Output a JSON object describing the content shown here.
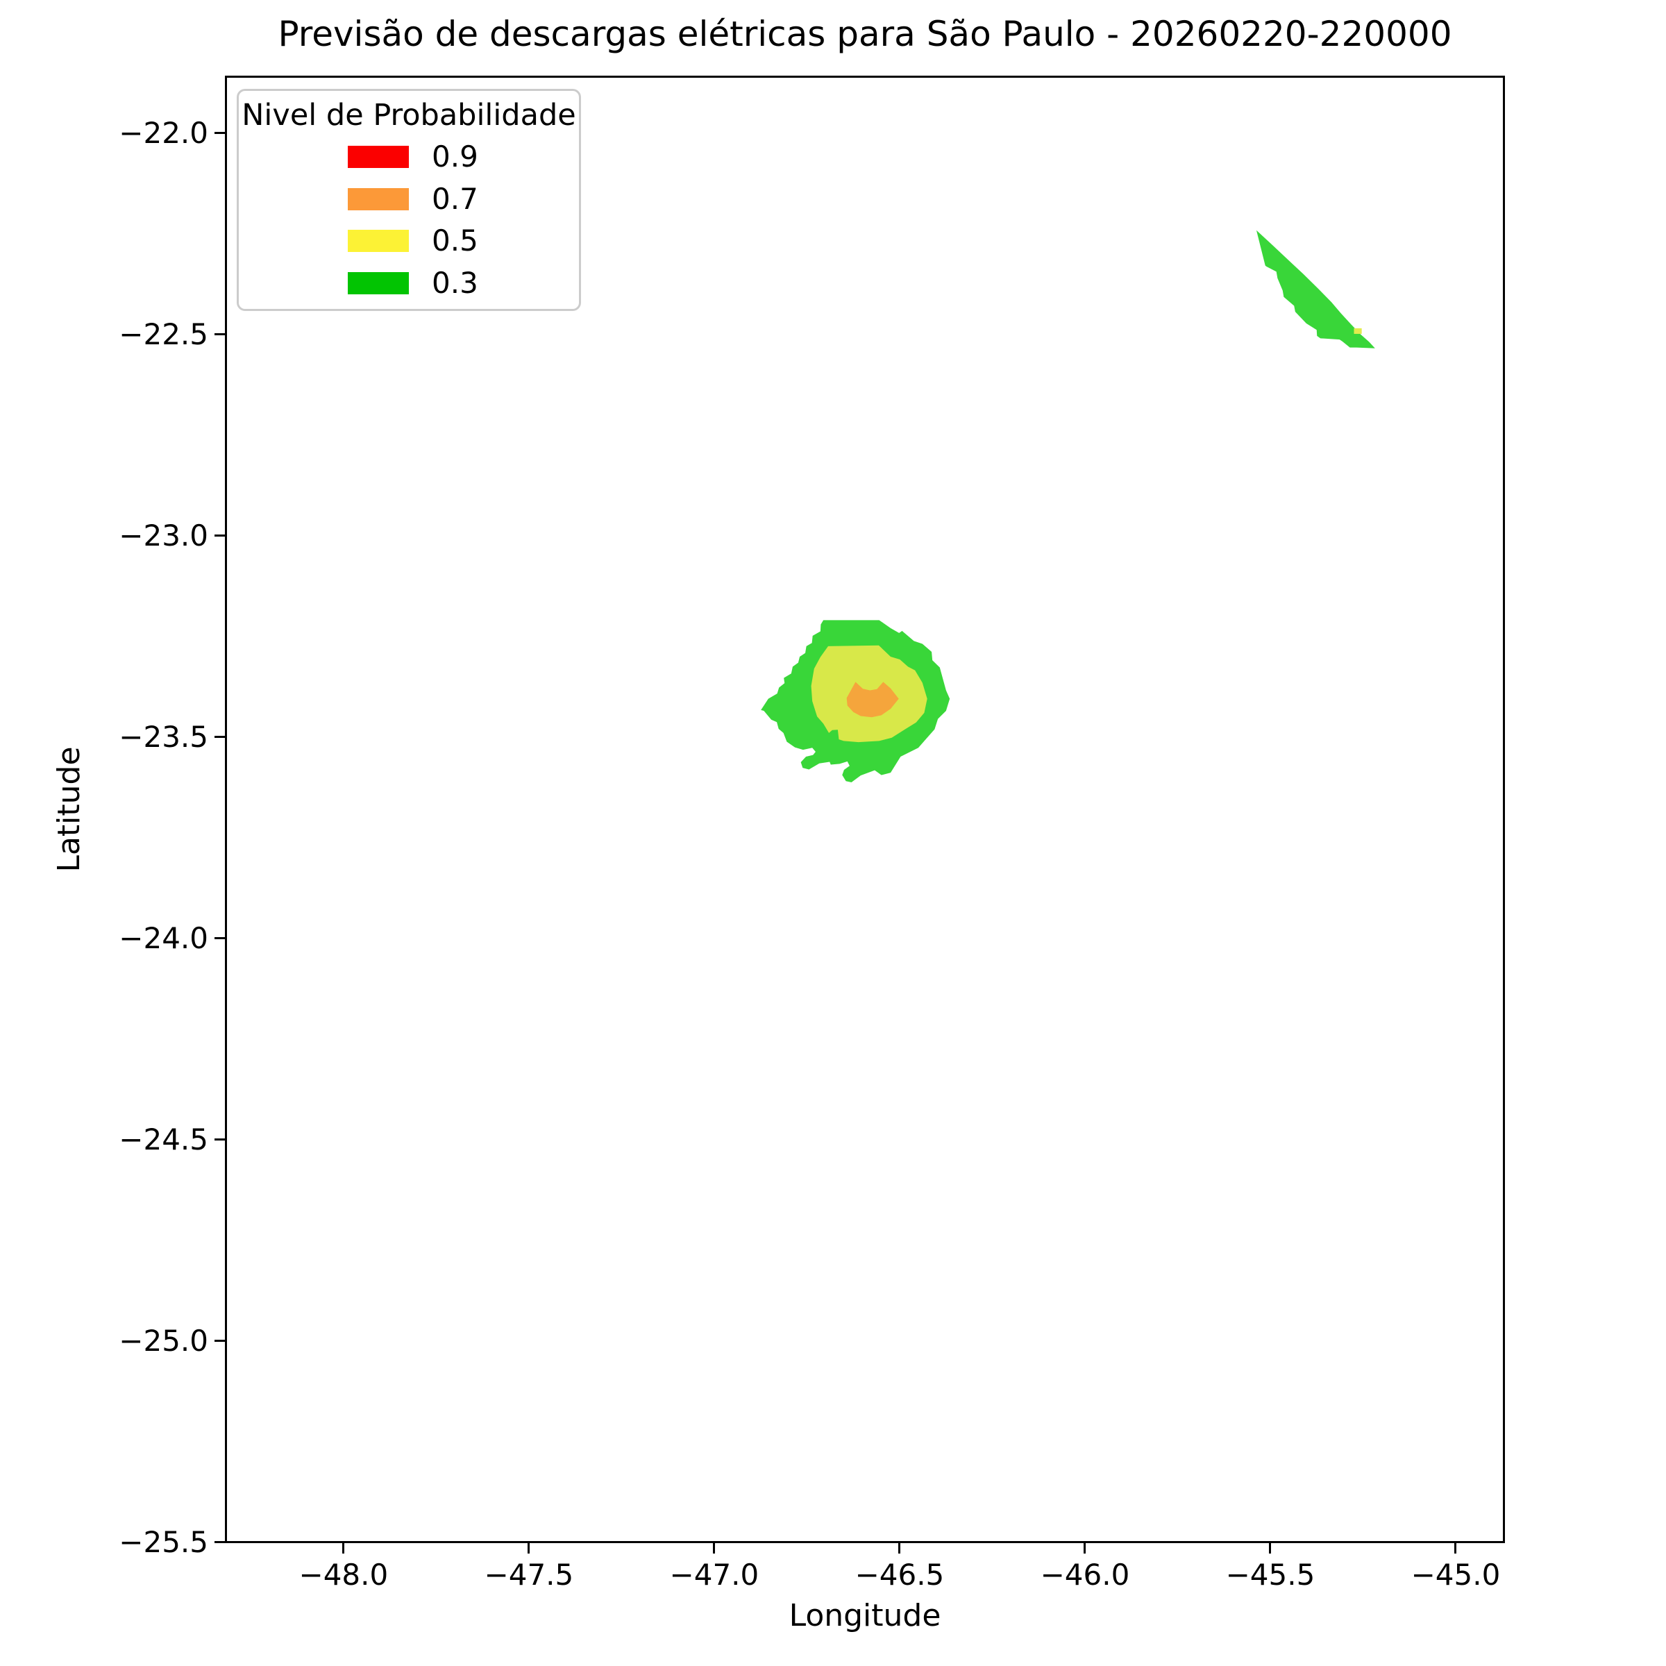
{
  "chart_data": {
    "type": "area",
    "title": "Previsão de descargas elétricas para São Paulo - 20260220-220000",
    "xlabel": "Longitude",
    "ylabel": "Latitude",
    "xlim": [
      -48.32,
      -44.867
    ],
    "ylim": [
      -25.502,
      -21.857
    ],
    "grid": false,
    "legend_position": "upper left",
    "xticks": [
      {
        "value": -48.0,
        "label": "−48.0"
      },
      {
        "value": -47.5,
        "label": "−47.5"
      },
      {
        "value": -47.0,
        "label": "−47.0"
      },
      {
        "value": -46.5,
        "label": "−46.5"
      },
      {
        "value": -46.0,
        "label": "−46.0"
      },
      {
        "value": -45.5,
        "label": "−45.5"
      },
      {
        "value": -45.0,
        "label": "−45.0"
      }
    ],
    "yticks": [
      {
        "value": -22.0,
        "label": "−22.0"
      },
      {
        "value": -22.5,
        "label": "−22.5"
      },
      {
        "value": -23.0,
        "label": "−23.0"
      },
      {
        "value": -23.5,
        "label": "−23.5"
      },
      {
        "value": -24.0,
        "label": "−24.0"
      },
      {
        "value": -24.5,
        "label": "−24.5"
      },
      {
        "value": -25.0,
        "label": "−25.0"
      },
      {
        "value": -25.5,
        "label": "−25.5"
      }
    ],
    "legend": {
      "title": "Nivel de Probabilidade",
      "entries": [
        {
          "label": "0.9",
          "color": "#FB0000"
        },
        {
          "label": "0.7",
          "color": "#FC9938"
        },
        {
          "label": "0.5",
          "color": "#FCF235"
        },
        {
          "label": "0.3",
          "color": "#02C402"
        }
      ]
    },
    "regions": [
      {
        "name": "sao-paulo-cell-p03",
        "level": 0.3,
        "color": "#39D639",
        "points": [
          [
            -46.706,
            -23.208
          ],
          [
            -46.555,
            -23.208
          ],
          [
            -46.524,
            -23.228
          ],
          [
            -46.501,
            -23.24
          ],
          [
            -46.493,
            -23.235
          ],
          [
            -46.461,
            -23.26
          ],
          [
            -46.438,
            -23.267
          ],
          [
            -46.413,
            -23.287
          ],
          [
            -46.411,
            -23.308
          ],
          [
            -46.391,
            -23.326
          ],
          [
            -46.374,
            -23.383
          ],
          [
            -46.364,
            -23.404
          ],
          [
            -46.374,
            -23.434
          ],
          [
            -46.396,
            -23.454
          ],
          [
            -46.405,
            -23.48
          ],
          [
            -46.427,
            -23.503
          ],
          [
            -46.449,
            -23.526
          ],
          [
            -46.497,
            -23.548
          ],
          [
            -46.524,
            -23.588
          ],
          [
            -46.549,
            -23.594
          ],
          [
            -46.567,
            -23.582
          ],
          [
            -46.605,
            -23.595
          ],
          [
            -46.63,
            -23.612
          ],
          [
            -46.645,
            -23.609
          ],
          [
            -46.655,
            -23.594
          ],
          [
            -46.65,
            -23.581
          ],
          [
            -46.635,
            -23.571
          ],
          [
            -46.641,
            -23.56
          ],
          [
            -46.662,
            -23.566
          ],
          [
            -46.686,
            -23.568
          ],
          [
            -46.689,
            -23.561
          ],
          [
            -46.717,
            -23.565
          ],
          [
            -46.745,
            -23.58
          ],
          [
            -46.762,
            -23.576
          ],
          [
            -46.767,
            -23.562
          ],
          [
            -46.753,
            -23.548
          ],
          [
            -46.734,
            -23.544
          ],
          [
            -46.727,
            -23.536
          ],
          [
            -46.736,
            -23.526
          ],
          [
            -46.761,
            -23.531
          ],
          [
            -46.783,
            -23.525
          ],
          [
            -46.805,
            -23.511
          ],
          [
            -46.814,
            -23.489
          ],
          [
            -46.827,
            -23.479
          ],
          [
            -46.832,
            -23.462
          ],
          [
            -46.847,
            -23.456
          ],
          [
            -46.867,
            -23.434
          ],
          [
            -46.875,
            -23.432
          ],
          [
            -46.855,
            -23.404
          ],
          [
            -46.831,
            -23.391
          ],
          [
            -46.826,
            -23.376
          ],
          [
            -46.811,
            -23.365
          ],
          [
            -46.813,
            -23.352
          ],
          [
            -46.793,
            -23.341
          ],
          [
            -46.789,
            -23.324
          ],
          [
            -46.774,
            -23.314
          ],
          [
            -46.77,
            -23.299
          ],
          [
            -46.755,
            -23.29
          ],
          [
            -46.752,
            -23.273
          ],
          [
            -46.737,
            -23.265
          ],
          [
            -46.735,
            -23.247
          ],
          [
            -46.714,
            -23.236
          ],
          [
            -46.713,
            -23.219
          ]
        ]
      },
      {
        "name": "sao-paulo-cell-p05",
        "level": 0.5,
        "color": "#D8E849",
        "points": [
          [
            -46.693,
            -23.273
          ],
          [
            -46.556,
            -23.271
          ],
          [
            -46.524,
            -23.299
          ],
          [
            -46.499,
            -23.306
          ],
          [
            -46.477,
            -23.324
          ],
          [
            -46.458,
            -23.333
          ],
          [
            -46.438,
            -23.364
          ],
          [
            -46.425,
            -23.404
          ],
          [
            -46.433,
            -23.439
          ],
          [
            -46.455,
            -23.463
          ],
          [
            -46.485,
            -23.48
          ],
          [
            -46.521,
            -23.501
          ],
          [
            -46.555,
            -23.509
          ],
          [
            -46.611,
            -23.512
          ],
          [
            -46.651,
            -23.509
          ],
          [
            -46.664,
            -23.505
          ],
          [
            -46.667,
            -23.481
          ],
          [
            -46.682,
            -23.482
          ],
          [
            -46.691,
            -23.489
          ],
          [
            -46.706,
            -23.466
          ],
          [
            -46.723,
            -23.448
          ],
          [
            -46.736,
            -23.41
          ],
          [
            -46.739,
            -23.372
          ],
          [
            -46.731,
            -23.329
          ],
          [
            -46.714,
            -23.3
          ]
        ]
      },
      {
        "name": "sao-paulo-cell-p07",
        "level": 0.7,
        "color": "#F5A53C",
        "points": [
          [
            -46.619,
            -23.362
          ],
          [
            -46.599,
            -23.379
          ],
          [
            -46.58,
            -23.383
          ],
          [
            -46.561,
            -23.38
          ],
          [
            -46.544,
            -23.362
          ],
          [
            -46.524,
            -23.378
          ],
          [
            -46.502,
            -23.404
          ],
          [
            -46.524,
            -23.429
          ],
          [
            -46.549,
            -23.445
          ],
          [
            -46.575,
            -23.45
          ],
          [
            -46.605,
            -23.447
          ],
          [
            -46.625,
            -23.437
          ],
          [
            -46.641,
            -23.421
          ],
          [
            -46.643,
            -23.402
          ]
        ]
      },
      {
        "name": "northeast-cell-p03",
        "level": 0.3,
        "color": "#39D639",
        "points": [
          [
            -45.534,
            -22.237
          ],
          [
            -45.494,
            -22.271
          ],
          [
            -45.45,
            -22.309
          ],
          [
            -45.407,
            -22.346
          ],
          [
            -45.366,
            -22.383
          ],
          [
            -45.331,
            -22.416
          ],
          [
            -45.305,
            -22.444
          ],
          [
            -45.278,
            -22.471
          ],
          [
            -45.251,
            -22.497
          ],
          [
            -45.229,
            -22.515
          ],
          [
            -45.213,
            -22.531
          ],
          [
            -45.263,
            -22.529
          ],
          [
            -45.281,
            -22.529
          ],
          [
            -45.301,
            -22.514
          ],
          [
            -45.309,
            -22.509
          ],
          [
            -45.361,
            -22.506
          ],
          [
            -45.37,
            -22.5
          ],
          [
            -45.371,
            -22.485
          ],
          [
            -45.399,
            -22.469
          ],
          [
            -45.429,
            -22.44
          ],
          [
            -45.432,
            -22.425
          ],
          [
            -45.46,
            -22.403
          ],
          [
            -45.463,
            -22.387
          ],
          [
            -45.477,
            -22.356
          ],
          [
            -45.48,
            -22.34
          ],
          [
            -45.507,
            -22.327
          ],
          [
            -45.51,
            -22.325
          ]
        ]
      },
      {
        "name": "northeast-cell-p05",
        "level": 0.5,
        "color": "#E2EC4E",
        "points": [
          [
            -45.27,
            -22.481
          ],
          [
            -45.249,
            -22.481
          ],
          [
            -45.249,
            -22.495
          ],
          [
            -45.27,
            -22.495
          ]
        ]
      }
    ]
  }
}
